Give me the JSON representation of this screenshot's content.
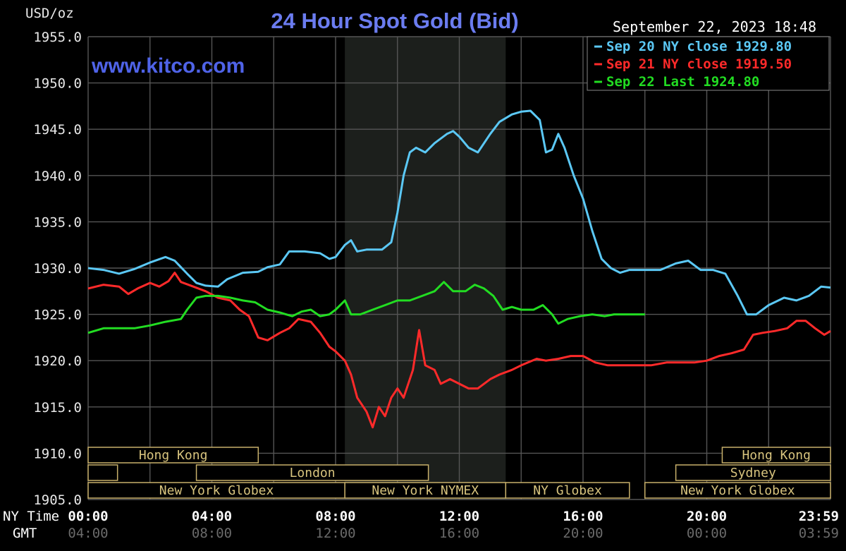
{
  "chart_data": {
    "type": "line",
    "title": "24 Hour Spot Gold (Bid)",
    "ylabel": "USD/oz",
    "watermark": "www.kitco.com",
    "timestamp": "September 22, 2023 18:48",
    "ylim": [
      1905,
      1955
    ],
    "xlim": [
      0,
      24
    ],
    "grid": true,
    "legend_position": "top-right",
    "y_ticks": [
      "1955.0",
      "1950.0",
      "1945.0",
      "1940.0",
      "1935.0",
      "1930.0",
      "1925.0",
      "1920.0",
      "1915.0",
      "1910.0",
      "1905.0"
    ],
    "x_tick_values": [
      0,
      4,
      8,
      12,
      16,
      20,
      24
    ],
    "ny_time_label": "NY Time",
    "gmt_label": "GMT",
    "ny_time_ticks": [
      "00:00",
      "04:00",
      "08:00",
      "12:00",
      "16:00",
      "20:00",
      "23:59"
    ],
    "gmt_ticks": [
      "04:00",
      "08:00",
      "12:00",
      "16:00",
      "20:00",
      "00:00",
      "03:59"
    ],
    "shaded_region": [
      8.3,
      13.5
    ],
    "series": [
      {
        "name": "Sep 20 NY close 1929.80",
        "color": "#5bc8f5",
        "points": [
          [
            0,
            1930.0
          ],
          [
            0.5,
            1929.8
          ],
          [
            1,
            1929.4
          ],
          [
            1.5,
            1929.9
          ],
          [
            2,
            1930.6
          ],
          [
            2.5,
            1931.2
          ],
          [
            2.8,
            1930.8
          ],
          [
            3.2,
            1929.4
          ],
          [
            3.5,
            1928.4
          ],
          [
            3.8,
            1928.1
          ],
          [
            4.2,
            1928.0
          ],
          [
            4.5,
            1928.8
          ],
          [
            5,
            1929.5
          ],
          [
            5.5,
            1929.6
          ],
          [
            5.8,
            1930.1
          ],
          [
            6.2,
            1930.4
          ],
          [
            6.5,
            1931.8
          ],
          [
            7,
            1931.8
          ],
          [
            7.5,
            1931.6
          ],
          [
            7.8,
            1931.0
          ],
          [
            8,
            1931.2
          ],
          [
            8.3,
            1932.5
          ],
          [
            8.5,
            1933.0
          ],
          [
            8.7,
            1931.8
          ],
          [
            9,
            1932.0
          ],
          [
            9.5,
            1932.0
          ],
          [
            9.8,
            1932.8
          ],
          [
            10,
            1936.0
          ],
          [
            10.2,
            1940.0
          ],
          [
            10.4,
            1942.5
          ],
          [
            10.6,
            1943.0
          ],
          [
            10.9,
            1942.5
          ],
          [
            11.2,
            1943.5
          ],
          [
            11.6,
            1944.5
          ],
          [
            11.8,
            1944.8
          ],
          [
            12,
            1944.2
          ],
          [
            12.3,
            1943.0
          ],
          [
            12.6,
            1942.5
          ],
          [
            13,
            1944.5
          ],
          [
            13.3,
            1945.8
          ],
          [
            13.7,
            1946.6
          ],
          [
            14,
            1946.9
          ],
          [
            14.3,
            1947.0
          ],
          [
            14.6,
            1946.0
          ],
          [
            14.8,
            1942.5
          ],
          [
            15,
            1942.8
          ],
          [
            15.2,
            1944.5
          ],
          [
            15.4,
            1943.0
          ],
          [
            15.7,
            1940.0
          ],
          [
            16,
            1937.5
          ],
          [
            16.3,
            1934.0
          ],
          [
            16.6,
            1931.0
          ],
          [
            16.9,
            1930.0
          ],
          [
            17.2,
            1929.5
          ],
          [
            17.5,
            1929.8
          ],
          [
            18,
            1929.8
          ],
          [
            18.5,
            1929.8
          ],
          [
            19,
            1930.5
          ],
          [
            19.4,
            1930.8
          ],
          [
            19.8,
            1929.8
          ],
          [
            20.2,
            1929.8
          ],
          [
            20.6,
            1929.4
          ],
          [
            21,
            1927.0
          ],
          [
            21.3,
            1925.0
          ],
          [
            21.6,
            1925.0
          ],
          [
            22,
            1926.0
          ],
          [
            22.5,
            1926.8
          ],
          [
            22.9,
            1926.5
          ],
          [
            23.3,
            1927.0
          ],
          [
            23.7,
            1928.0
          ],
          [
            24,
            1927.9
          ]
        ]
      },
      {
        "name": "Sep 21 NY close 1919.50",
        "color": "#ff2a2a",
        "points": [
          [
            0,
            1927.8
          ],
          [
            0.5,
            1928.2
          ],
          [
            1,
            1928.0
          ],
          [
            1.3,
            1927.2
          ],
          [
            1.6,
            1927.8
          ],
          [
            2,
            1928.4
          ],
          [
            2.3,
            1928.0
          ],
          [
            2.6,
            1928.6
          ],
          [
            2.8,
            1929.5
          ],
          [
            3,
            1928.5
          ],
          [
            3.4,
            1928.0
          ],
          [
            3.8,
            1927.5
          ],
          [
            4.2,
            1926.8
          ],
          [
            4.6,
            1926.5
          ],
          [
            4.9,
            1925.5
          ],
          [
            5.2,
            1924.8
          ],
          [
            5.5,
            1922.5
          ],
          [
            5.8,
            1922.2
          ],
          [
            6.2,
            1923.0
          ],
          [
            6.5,
            1923.5
          ],
          [
            6.8,
            1924.5
          ],
          [
            7.2,
            1924.2
          ],
          [
            7.5,
            1923.0
          ],
          [
            7.8,
            1921.5
          ],
          [
            8,
            1921.0
          ],
          [
            8.3,
            1920.0
          ],
          [
            8.5,
            1918.5
          ],
          [
            8.7,
            1916.0
          ],
          [
            9,
            1914.5
          ],
          [
            9.2,
            1912.8
          ],
          [
            9.4,
            1915.0
          ],
          [
            9.6,
            1914.0
          ],
          [
            9.8,
            1916.0
          ],
          [
            10,
            1917.0
          ],
          [
            10.2,
            1916.0
          ],
          [
            10.5,
            1919.0
          ],
          [
            10.7,
            1923.3
          ],
          [
            10.9,
            1919.5
          ],
          [
            11.2,
            1919.0
          ],
          [
            11.4,
            1917.5
          ],
          [
            11.7,
            1918.0
          ],
          [
            12,
            1917.5
          ],
          [
            12.3,
            1917.0
          ],
          [
            12.6,
            1917.0
          ],
          [
            13,
            1918.0
          ],
          [
            13.3,
            1918.5
          ],
          [
            13.7,
            1919.0
          ],
          [
            14,
            1919.5
          ],
          [
            14.5,
            1920.2
          ],
          [
            14.8,
            1920.0
          ],
          [
            15.2,
            1920.2
          ],
          [
            15.6,
            1920.5
          ],
          [
            16,
            1920.5
          ],
          [
            16.4,
            1919.8
          ],
          [
            16.8,
            1919.5
          ],
          [
            17.2,
            1919.5
          ],
          [
            17.7,
            1919.5
          ],
          [
            18.2,
            1919.5
          ],
          [
            18.7,
            1919.8
          ],
          [
            19.2,
            1919.8
          ],
          [
            19.6,
            1919.8
          ],
          [
            20,
            1920.0
          ],
          [
            20.4,
            1920.5
          ],
          [
            20.8,
            1920.8
          ],
          [
            21.2,
            1921.2
          ],
          [
            21.5,
            1922.8
          ],
          [
            21.8,
            1923.0
          ],
          [
            22.2,
            1923.2
          ],
          [
            22.6,
            1923.5
          ],
          [
            22.9,
            1924.3
          ],
          [
            23.2,
            1924.3
          ],
          [
            23.5,
            1923.5
          ],
          [
            23.8,
            1922.8
          ],
          [
            24,
            1923.2
          ]
        ]
      },
      {
        "name": "Sep 22 Last 1924.80",
        "color": "#22dd22",
        "points": [
          [
            0,
            1923.0
          ],
          [
            0.5,
            1923.5
          ],
          [
            1,
            1923.5
          ],
          [
            1.5,
            1923.5
          ],
          [
            2,
            1923.8
          ],
          [
            2.5,
            1924.2
          ],
          [
            3,
            1924.5
          ],
          [
            3.2,
            1925.5
          ],
          [
            3.5,
            1926.8
          ],
          [
            3.8,
            1927.0
          ],
          [
            4.2,
            1927.0
          ],
          [
            4.6,
            1926.8
          ],
          [
            5,
            1926.5
          ],
          [
            5.4,
            1926.3
          ],
          [
            5.8,
            1925.5
          ],
          [
            6.2,
            1925.2
          ],
          [
            6.6,
            1924.8
          ],
          [
            6.9,
            1925.3
          ],
          [
            7.2,
            1925.5
          ],
          [
            7.5,
            1924.8
          ],
          [
            7.8,
            1925.0
          ],
          [
            8,
            1925.5
          ],
          [
            8.3,
            1926.5
          ],
          [
            8.5,
            1925.0
          ],
          [
            8.8,
            1925.0
          ],
          [
            9.2,
            1925.5
          ],
          [
            9.6,
            1926.0
          ],
          [
            10,
            1926.5
          ],
          [
            10.4,
            1926.5
          ],
          [
            10.8,
            1927.0
          ],
          [
            11.2,
            1927.5
          ],
          [
            11.5,
            1928.5
          ],
          [
            11.8,
            1927.5
          ],
          [
            12.2,
            1927.5
          ],
          [
            12.5,
            1928.2
          ],
          [
            12.8,
            1927.8
          ],
          [
            13.1,
            1927.0
          ],
          [
            13.4,
            1925.5
          ],
          [
            13.7,
            1925.8
          ],
          [
            14,
            1925.5
          ],
          [
            14.4,
            1925.5
          ],
          [
            14.7,
            1926.0
          ],
          [
            15,
            1925.0
          ],
          [
            15.2,
            1924.0
          ],
          [
            15.5,
            1924.5
          ],
          [
            15.9,
            1924.8
          ],
          [
            16.3,
            1925.0
          ],
          [
            16.7,
            1924.8
          ],
          [
            17,
            1925.0
          ],
          [
            17.5,
            1925.0
          ],
          [
            18,
            1925.0
          ]
        ]
      }
    ],
    "sessions": [
      {
        "label": "Hong Kong",
        "row": 0,
        "start": 0,
        "end": 5.5
      },
      {
        "label": "",
        "row": 1,
        "start": 0,
        "end": 0.95
      },
      {
        "label": "London",
        "row": 1,
        "start": 3.5,
        "end": 11
      },
      {
        "label": "New York Globex",
        "row": 2,
        "start": 0,
        "end": 8.3
      },
      {
        "label": "New York NYMEX",
        "row": 2,
        "start": 8.3,
        "end": 13.5
      },
      {
        "label": "NY Globex",
        "row": 2,
        "start": 13.5,
        "end": 17.5
      },
      {
        "label": "Hong Kong",
        "row": 0,
        "start": 20.5,
        "end": 24
      },
      {
        "label": "Sydney",
        "row": 1,
        "start": 19,
        "end": 24
      },
      {
        "label": "New York Globex",
        "row": 2,
        "start": 18,
        "end": 24
      }
    ]
  }
}
